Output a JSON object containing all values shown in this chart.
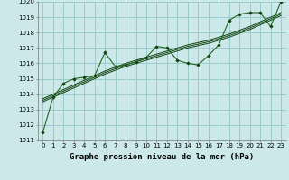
{
  "xlabel": "Graphe pression niveau de la mer (hPa)",
  "x": [
    0,
    1,
    2,
    3,
    4,
    5,
    6,
    7,
    8,
    9,
    10,
    11,
    12,
    13,
    14,
    15,
    16,
    17,
    18,
    19,
    20,
    21,
    22,
    23
  ],
  "pressure_main": [
    1011.5,
    1013.8,
    1014.7,
    1015.0,
    1015.1,
    1015.2,
    1016.7,
    1015.8,
    1015.9,
    1016.1,
    1016.4,
    1017.1,
    1017.0,
    1016.2,
    1016.0,
    1015.9,
    1016.5,
    1017.2,
    1018.8,
    1019.2,
    1019.3,
    1019.3,
    1018.4,
    1020.0
  ],
  "pressure_line1": [
    1013.5,
    1013.8,
    1014.1,
    1014.4,
    1014.7,
    1015.0,
    1015.3,
    1015.55,
    1015.8,
    1016.0,
    1016.2,
    1016.4,
    1016.6,
    1016.8,
    1017.0,
    1017.15,
    1017.3,
    1017.5,
    1017.7,
    1017.95,
    1018.2,
    1018.5,
    1018.8,
    1019.1
  ],
  "pressure_line2": [
    1013.6,
    1013.9,
    1014.2,
    1014.5,
    1014.8,
    1015.1,
    1015.4,
    1015.65,
    1015.9,
    1016.1,
    1016.3,
    1016.5,
    1016.7,
    1016.9,
    1017.1,
    1017.25,
    1017.4,
    1017.6,
    1017.8,
    1018.05,
    1018.3,
    1018.6,
    1018.9,
    1019.2
  ],
  "pressure_line3": [
    1013.7,
    1014.0,
    1014.3,
    1014.6,
    1014.9,
    1015.2,
    1015.5,
    1015.75,
    1016.0,
    1016.2,
    1016.4,
    1016.6,
    1016.8,
    1017.0,
    1017.2,
    1017.35,
    1017.5,
    1017.7,
    1017.9,
    1018.15,
    1018.4,
    1018.7,
    1019.0,
    1019.3
  ],
  "bg_color": "#cce8e8",
  "grid_color": "#99cccc",
  "line_color": "#226622",
  "line_color_dark": "#114411",
  "ylim": [
    1011,
    1020
  ],
  "yticks": [
    1011,
    1012,
    1013,
    1014,
    1015,
    1016,
    1017,
    1018,
    1019,
    1020
  ],
  "xticks": [
    0,
    1,
    2,
    3,
    4,
    5,
    6,
    7,
    8,
    9,
    10,
    11,
    12,
    13,
    14,
    15,
    16,
    17,
    18,
    19,
    20,
    21,
    22,
    23
  ],
  "xtick_labels": [
    "0",
    "1",
    "2",
    "3",
    "4",
    "5",
    "6",
    "7",
    "8",
    "9",
    "10",
    "11",
    "12",
    "13",
    "14",
    "15",
    "16",
    "17",
    "18",
    "19",
    "20",
    "21",
    "22",
    "23"
  ],
  "xlabel_fontsize": 6.5,
  "tick_fontsize": 5.0
}
